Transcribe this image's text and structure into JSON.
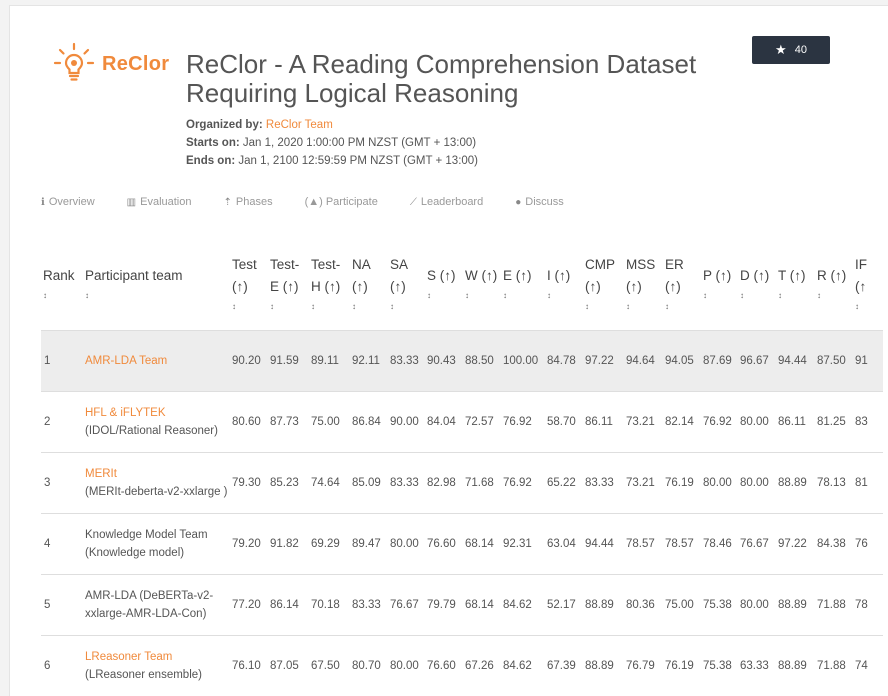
{
  "header": {
    "logo_text": "ReClor",
    "title": "ReClor - A Reading Comprehension Dataset Requiring Logical Reasoning",
    "star_count": "40",
    "organized_by_label": "Organized by:",
    "organizer": "ReClor Team",
    "starts_label": "Starts on:",
    "starts_value": "Jan 1, 2020 1:00:00 PM NZST (GMT + 13:00)",
    "ends_label": "Ends on:",
    "ends_value": "Jan 1, 2100 12:59:59 PM NZST (GMT + 13:00)"
  },
  "tabs": [
    {
      "label": "Overview",
      "icon": "info-icon"
    },
    {
      "label": "Evaluation",
      "icon": "bar-chart-icon"
    },
    {
      "label": "Phases",
      "icon": "phases-icon"
    },
    {
      "label": "(▲) Participate",
      "icon": "none"
    },
    {
      "label": "Leaderboard",
      "icon": "line-chart-icon"
    },
    {
      "label": "Discuss",
      "icon": "chat-icon"
    }
  ],
  "table": {
    "columns": [
      "Rank",
      "Participant team",
      "Test (↑)",
      "Test-E (↑)",
      "Test-H (↑)",
      "NA (↑)",
      "SA (↑)",
      "S (↑)",
      "W (↑)",
      "E (↑)",
      "I (↑)",
      "CMP (↑)",
      "MSS (↑)",
      "ER (↑)",
      "P (↑)",
      "D (↑)",
      "T (↑)",
      "R (↑)",
      "IF (↑"
    ],
    "rows": [
      {
        "rank": "1",
        "team": "AMR-LDA Team",
        "team_is_link": true,
        "desc": "",
        "values": [
          "90.20",
          "91.59",
          "89.11",
          "92.11",
          "83.33",
          "90.43",
          "88.50",
          "100.00",
          "84.78",
          "97.22",
          "94.64",
          "94.05",
          "87.69",
          "96.67",
          "94.44",
          "87.50",
          "91"
        ]
      },
      {
        "rank": "2",
        "team": "HFL & iFLYTEK",
        "team_is_link": true,
        "desc": "(IDOL/Rational Reasoner)",
        "values": [
          "80.60",
          "87.73",
          "75.00",
          "86.84",
          "90.00",
          "84.04",
          "72.57",
          "76.92",
          "58.70",
          "86.11",
          "73.21",
          "82.14",
          "76.92",
          "80.00",
          "86.11",
          "81.25",
          "83"
        ]
      },
      {
        "rank": "3",
        "team": "MERIt",
        "team_is_link": true,
        "desc": "(MERIt-deberta-v2-xxlarge )",
        "values": [
          "79.30",
          "85.23",
          "74.64",
          "85.09",
          "83.33",
          "82.98",
          "71.68",
          "76.92",
          "65.22",
          "83.33",
          "73.21",
          "76.19",
          "80.00",
          "80.00",
          "88.89",
          "78.13",
          "81"
        ]
      },
      {
        "rank": "4",
        "team": "Knowledge Model Team",
        "team_is_link": false,
        "desc": "(Knowledge model)",
        "values": [
          "79.20",
          "91.82",
          "69.29",
          "89.47",
          "80.00",
          "76.60",
          "68.14",
          "92.31",
          "63.04",
          "94.44",
          "78.57",
          "78.57",
          "78.46",
          "76.67",
          "97.22",
          "84.38",
          "76"
        ]
      },
      {
        "rank": "5",
        "team": "AMR-LDA (DeBERTa-v2-xxlarge-AMR-LDA-Con)",
        "team_is_link": false,
        "desc": "",
        "values": [
          "77.20",
          "86.14",
          "70.18",
          "83.33",
          "76.67",
          "79.79",
          "68.14",
          "84.62",
          "52.17",
          "88.89",
          "80.36",
          "75.00",
          "75.38",
          "80.00",
          "88.89",
          "71.88",
          "78"
        ]
      },
      {
        "rank": "6",
        "team": "LReasoner Team",
        "team_is_link": true,
        "desc": "(LReasoner ensemble)",
        "values": [
          "76.10",
          "87.05",
          "67.50",
          "80.70",
          "80.00",
          "76.60",
          "67.26",
          "84.62",
          "67.39",
          "88.89",
          "76.79",
          "76.19",
          "75.38",
          "63.33",
          "88.89",
          "71.88",
          "74"
        ]
      }
    ]
  }
}
